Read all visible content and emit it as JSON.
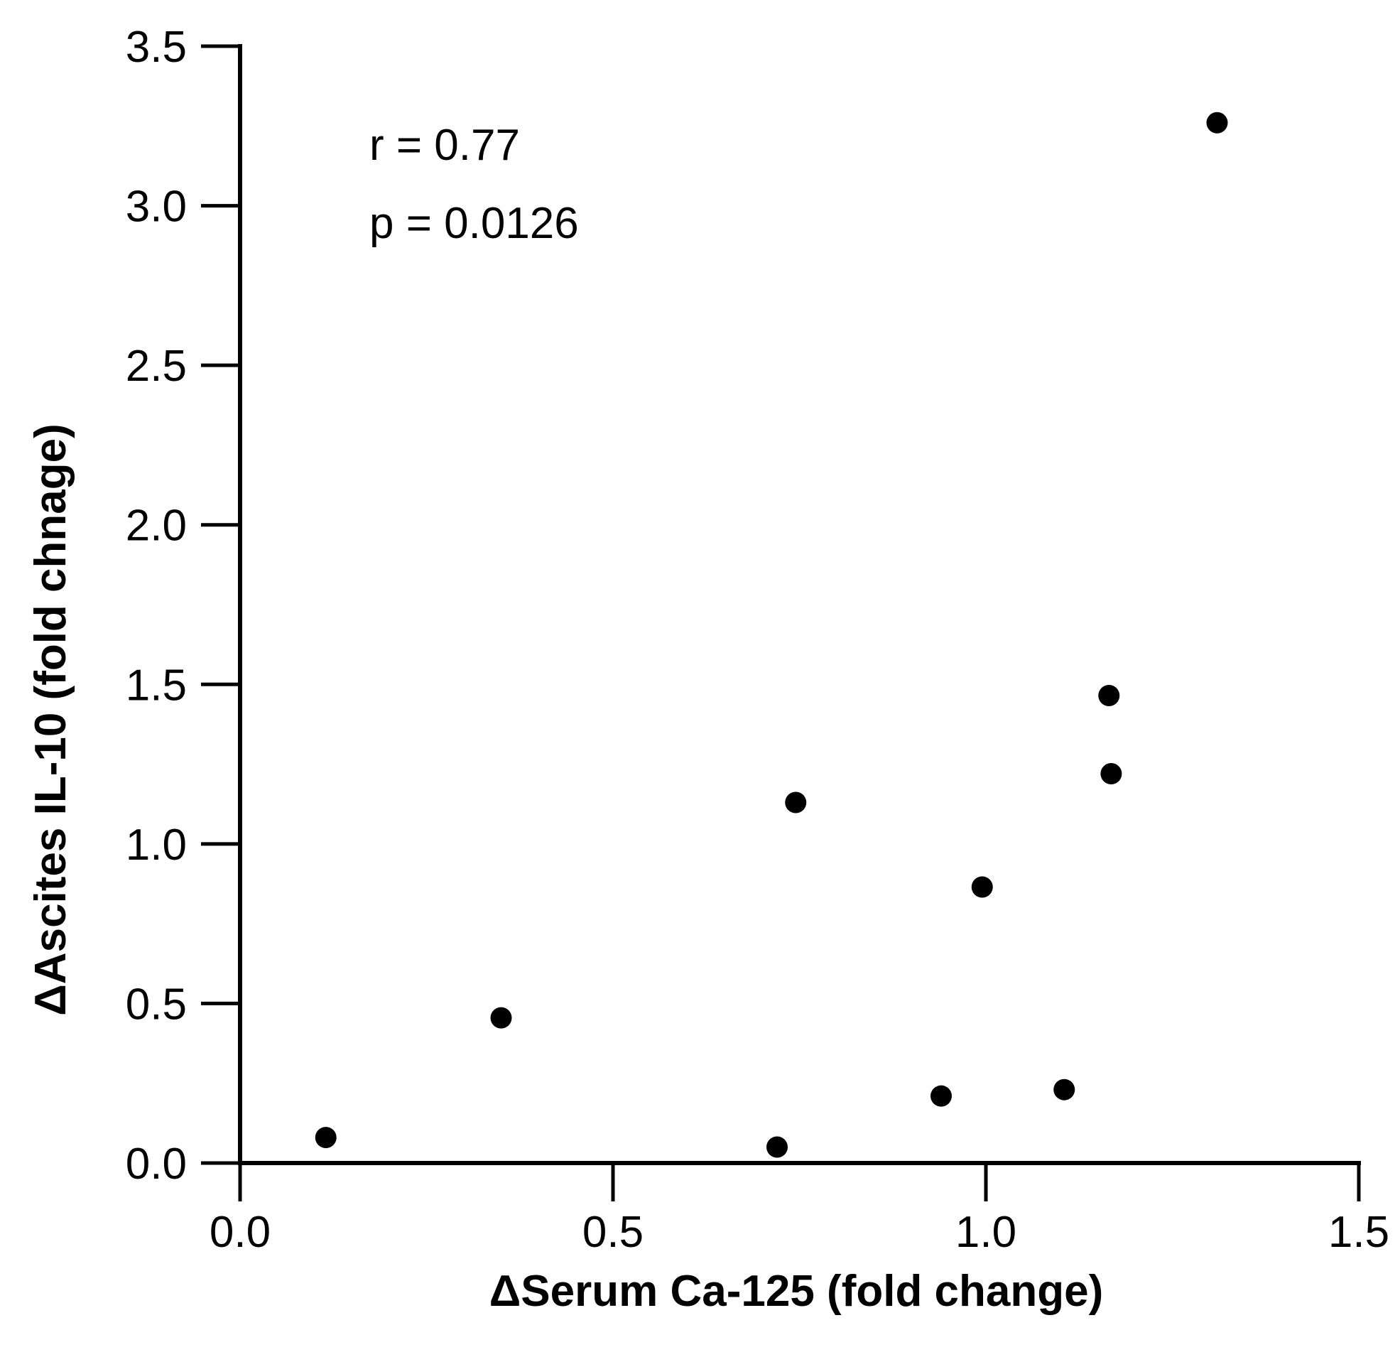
{
  "chart_data": {
    "type": "scatter",
    "title": "",
    "xlabel": "ΔSerum Ca-125 (fold change)",
    "ylabel": "ΔAscites IL-10 (fold chnage)",
    "xlim": [
      0,
      1.5
    ],
    "ylim": [
      0,
      3.5
    ],
    "x_ticks": [
      0,
      0.5,
      1.0,
      1.5
    ],
    "x_tick_labels": [
      "0.0",
      "0.5",
      "1.0",
      "1.5"
    ],
    "y_ticks": [
      0,
      0.5,
      1.0,
      1.5,
      2.0,
      2.5,
      3.0,
      3.5
    ],
    "y_tick_labels": [
      "0.0",
      "0.5",
      "1.0",
      "1.5",
      "2.0",
      "2.5",
      "3.0",
      "3.5"
    ],
    "grid": false,
    "legend": "none",
    "marker_color": "#000000",
    "points": [
      {
        "x": 0.115,
        "y": 0.08
      },
      {
        "x": 0.35,
        "y": 0.455
      },
      {
        "x": 0.72,
        "y": 0.05
      },
      {
        "x": 0.745,
        "y": 1.13
      },
      {
        "x": 0.94,
        "y": 0.21
      },
      {
        "x": 0.995,
        "y": 0.865
      },
      {
        "x": 1.105,
        "y": 0.23
      },
      {
        "x": 1.165,
        "y": 1.465
      },
      {
        "x": 1.168,
        "y": 1.22
      },
      {
        "x": 1.31,
        "y": 3.26
      }
    ],
    "annotations": [
      "r = 0.77",
      "p = 0.0126"
    ]
  }
}
